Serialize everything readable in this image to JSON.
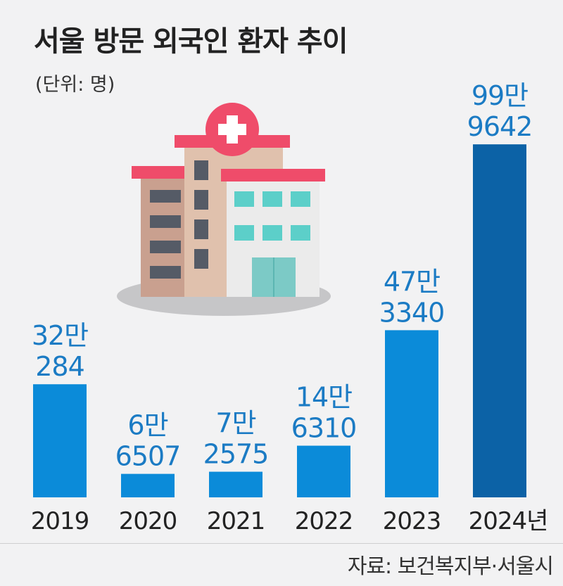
{
  "chart_data": {
    "type": "bar",
    "title": "서울 방문 외국인 환자 추이",
    "unit": "(단위: 명)",
    "categories": [
      "2019",
      "2020",
      "2021",
      "2022",
      "2023",
      "2024년"
    ],
    "values": [
      320284,
      66507,
      72575,
      146310,
      473340,
      999642
    ],
    "value_labels": [
      [
        "32만",
        "284"
      ],
      [
        "6만",
        "6507"
      ],
      [
        "7만",
        "2575"
      ],
      [
        "14만",
        "6310"
      ],
      [
        "47만",
        "3340"
      ],
      [
        "99만",
        "9642"
      ]
    ],
    "ylim": [
      0,
      1000000
    ],
    "grid": false,
    "legend": "none"
  },
  "source": "자료: 보건복지부·서울시",
  "colors": {
    "bar": "#0b8bd9",
    "bar_highlight": "#0c62a6",
    "value_text": "#1b7bc4",
    "background": "#f2f2f3"
  },
  "illustration": "hospital-building-icon"
}
